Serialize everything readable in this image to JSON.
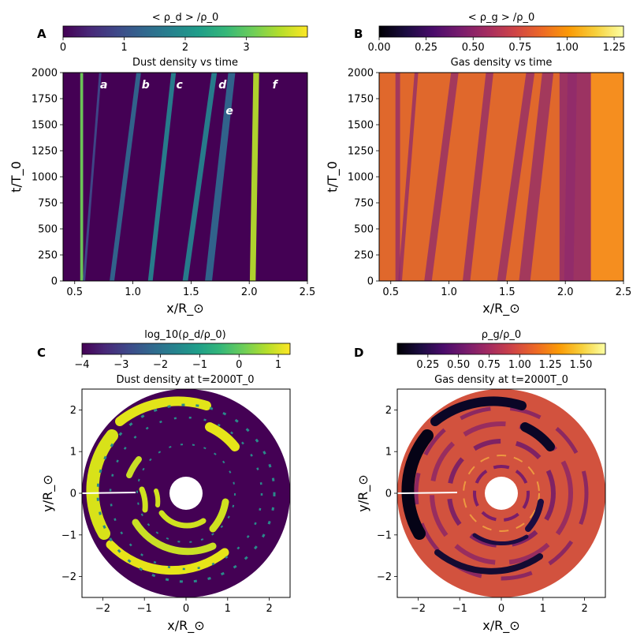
{
  "colors": {
    "viridis": [
      "#440154",
      "#482878",
      "#3e4989",
      "#31688e",
      "#26828e",
      "#1f9e89",
      "#35b779",
      "#6ece58",
      "#b5de2b",
      "#fde725"
    ],
    "inferno": [
      "#000004",
      "#1b0c41",
      "#4a0c6b",
      "#781c6d",
      "#a52c60",
      "#cf4446",
      "#ed6925",
      "#fb9b06",
      "#f7d13d",
      "#fcffa4"
    ],
    "dust_bg": "#440154",
    "gas_bg": "#e0682c",
    "gas_mid": "#8f2a6c"
  },
  "chart_data": [
    {
      "panel": "A",
      "type": "heatmap",
      "title": "Dust density vs time",
      "colorbar": {
        "label": "< ρ_d > /ρ_0",
        "ticks": [
          "0",
          "1",
          "2",
          "3"
        ],
        "range": [
          0,
          4
        ]
      },
      "xlabel": "x/R_⊙",
      "ylabel": "t/T_0",
      "xlim": [
        0.4,
        2.5
      ],
      "ylim": [
        0,
        2000
      ],
      "xticks": [
        "0.5",
        "1.0",
        "1.5",
        "2.0",
        "2.5"
      ],
      "yticks": [
        "0",
        "250",
        "500",
        "750",
        "1000",
        "1250",
        "1500",
        "1750",
        "2000"
      ],
      "annotations": [
        {
          "text": "a",
          "x": 0.75,
          "y": 1850
        },
        {
          "text": "b",
          "x": 1.11,
          "y": 1850
        },
        {
          "text": "c",
          "x": 1.4,
          "y": 1850
        },
        {
          "text": "d",
          "x": 1.77,
          "y": 1850
        },
        {
          "text": "e",
          "x": 1.83,
          "y": 1600
        },
        {
          "text": "f",
          "x": 2.22,
          "y": 1850
        }
      ],
      "bands": [
        {
          "x0": 0.56,
          "x1": 0.56,
          "value": 3.0,
          "width": 0.025
        },
        {
          "x0": 0.58,
          "x1": 0.72,
          "value": 1.0,
          "width": 0.02
        },
        {
          "x0": 0.82,
          "x1": 1.05,
          "value": 1.5,
          "width": 0.04
        },
        {
          "x0": 1.15,
          "x1": 1.35,
          "value": 1.6,
          "width": 0.04
        },
        {
          "x0": 1.45,
          "x1": 1.7,
          "value": 1.8,
          "width": 0.045
        },
        {
          "x0": 1.65,
          "x1": 1.85,
          "value": 1.2,
          "width": 0.06
        },
        {
          "x0": 2.03,
          "x1": 2.06,
          "value": 3.6,
          "width": 0.05
        }
      ]
    },
    {
      "panel": "B",
      "type": "heatmap",
      "title": "Gas density vs time",
      "colorbar": {
        "label": "< ρ_g > /ρ_0",
        "ticks": [
          "0.00",
          "0.25",
          "0.50",
          "0.75",
          "1.00",
          "1.25"
        ],
        "range": [
          0,
          1.3
        ]
      },
      "xlabel": "x/R_⊙",
      "ylabel": "t/T_0",
      "xlim": [
        0.4,
        2.5
      ],
      "ylim": [
        0,
        2000
      ],
      "xticks": [
        "0.5",
        "1.0",
        "1.5",
        "2.0",
        "2.5"
      ],
      "yticks": [
        "0",
        "250",
        "500",
        "750",
        "1000",
        "1250",
        "1500",
        "1750",
        "2000"
      ]
    },
    {
      "panel": "C",
      "type": "heatmap",
      "title": "Dust density at t=2000T_0",
      "colorbar": {
        "label": "log_10(ρ_d/ρ_0)",
        "ticks": [
          "−4",
          "−3",
          "−2",
          "−1",
          "0",
          "1"
        ],
        "range": [
          -4,
          1.3
        ]
      },
      "xlabel": "x/R_⊙",
      "ylabel": "y/R_⊙",
      "xlim": [
        -2.5,
        2.5
      ],
      "ylim": [
        -2.5,
        2.5
      ],
      "xticks": [
        "−2",
        "−1",
        "0",
        "1",
        "2"
      ],
      "yticks": [
        "−2",
        "−1",
        "0",
        "1",
        "2"
      ],
      "disk": {
        "r_inner": 0.4,
        "r_outer": 2.5
      }
    },
    {
      "panel": "D",
      "type": "heatmap",
      "title": "Gas density at t=2000T_0",
      "colorbar": {
        "label": "ρ_g/ρ_0",
        "ticks": [
          "0.25",
          "0.50",
          "0.75",
          "1.00",
          "1.25",
          "1.50"
        ],
        "range": [
          0,
          1.7
        ]
      },
      "xlabel": "x/R_⊙",
      "ylabel": "y/R_⊙",
      "xlim": [
        -2.5,
        2.5
      ],
      "ylim": [
        -2.5,
        2.5
      ],
      "xticks": [
        "−2",
        "−1",
        "0",
        "1",
        "2"
      ],
      "yticks": [
        "−2",
        "−1",
        "0",
        "1",
        "2"
      ],
      "disk": {
        "r_inner": 0.4,
        "r_outer": 2.5
      }
    }
  ]
}
